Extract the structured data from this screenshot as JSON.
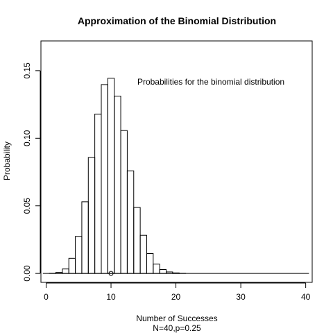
{
  "chart_data": {
    "type": "bar",
    "title": "Approximation of the Binomial Distribution",
    "xlabel": "Number of Successes",
    "xlabel_sub": "N=40,p=0.25",
    "ylabel": "Probability",
    "annotation": "Probabilities for the binomial distribution",
    "xlim": [
      -0.8,
      41.0
    ],
    "ylim": [
      -0.0066,
      0.172
    ],
    "xticks": [
      0,
      10,
      20,
      30,
      40
    ],
    "yticks": [
      0.0,
      0.05,
      0.1,
      0.15
    ],
    "ytick_labels": [
      "0.00",
      "0.05",
      "0.10",
      "0.15"
    ],
    "categories": [
      0,
      1,
      2,
      3,
      4,
      5,
      6,
      7,
      8,
      9,
      10,
      11,
      12,
      13,
      14,
      15,
      16,
      17,
      18,
      19,
      20,
      21,
      22,
      23,
      24,
      25,
      26,
      27,
      28,
      29,
      30,
      31,
      32,
      33,
      34,
      35,
      36,
      37,
      38,
      39,
      40
    ],
    "values": [
      0.0,
      0.0001,
      0.0008,
      0.0033,
      0.0112,
      0.0274,
      0.053,
      0.0858,
      0.1179,
      0.1397,
      0.1444,
      0.1312,
      0.1057,
      0.0759,
      0.0488,
      0.0282,
      0.0147,
      0.0069,
      0.0029,
      0.0011,
      0.0004,
      0.0001,
      0.0,
      0.0,
      0.0,
      0.0,
      0.0,
      0.0,
      0.0,
      0.0,
      0.0,
      0.0,
      0.0,
      0.0,
      0.0,
      0.0,
      0.0,
      0.0,
      0.0,
      0.0,
      0.0
    ],
    "marker": {
      "x": 10,
      "y": 0.0
    }
  }
}
